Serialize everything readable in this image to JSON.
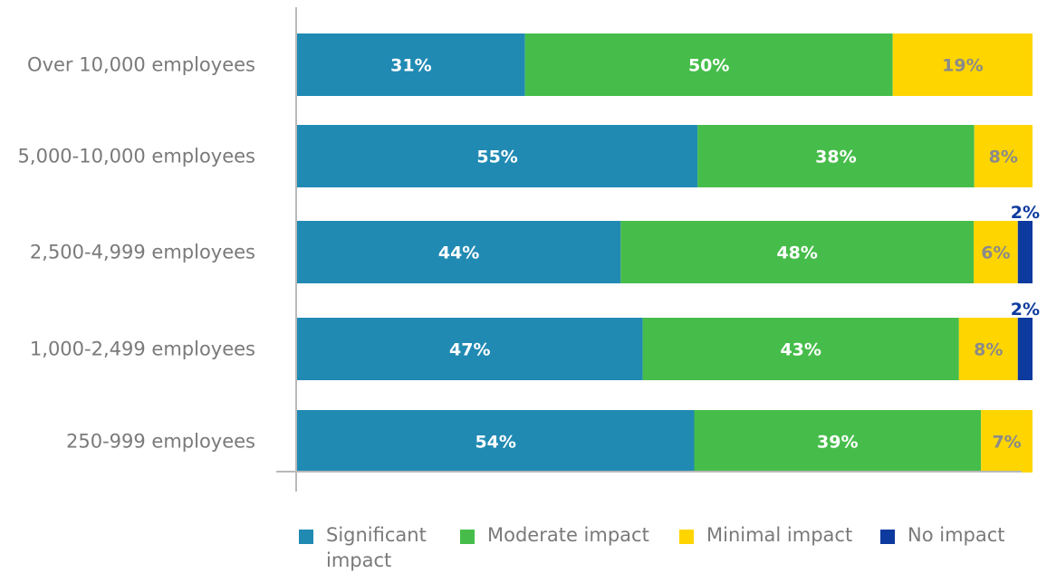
{
  "chart_data": {
    "type": "bar",
    "orientation": "horizontal",
    "stacked": true,
    "categories": [
      "Over 10,000 employees",
      "5,000-10,000 employees",
      "2,500-4,999 employees",
      "1,000-2,499 employees",
      "250-999 employees"
    ],
    "series": [
      {
        "name": "Significant impact",
        "values": [
          31,
          55,
          44,
          47,
          54
        ],
        "labels": [
          "31%",
          "55%",
          "44%",
          "47%",
          "54%"
        ],
        "color": "#208ab3",
        "label_color": "#ffffff"
      },
      {
        "name": "Moderate impact",
        "values": [
          50,
          38,
          48,
          43,
          39
        ],
        "labels": [
          "50%",
          "38%",
          "48%",
          "43%",
          "39%"
        ],
        "color": "#46bd4a",
        "label_color": "#ffffff"
      },
      {
        "name": "Minimal impact",
        "values": [
          19,
          8,
          6,
          8,
          7
        ],
        "labels": [
          "19%",
          "8%",
          "6%",
          "8%",
          "7%"
        ],
        "color": "#ffd500",
        "label_color": "#8a8a8a"
      },
      {
        "name": "No impact",
        "values": [
          0,
          0,
          2,
          2,
          0
        ],
        "labels": [
          "",
          "",
          "2%",
          "2%",
          ""
        ],
        "color": "#0d3a9e",
        "label_color": "#0d3a9e"
      }
    ],
    "legend_labels": [
      {
        "line1": "Significant",
        "line2": "impact"
      },
      {
        "line1": "Moderate impact",
        "line2": ""
      },
      {
        "line1": "Minimal impact",
        "line2": ""
      },
      {
        "line1": "No impact",
        "line2": ""
      }
    ],
    "legend_position": "bottom",
    "grid": false
  }
}
